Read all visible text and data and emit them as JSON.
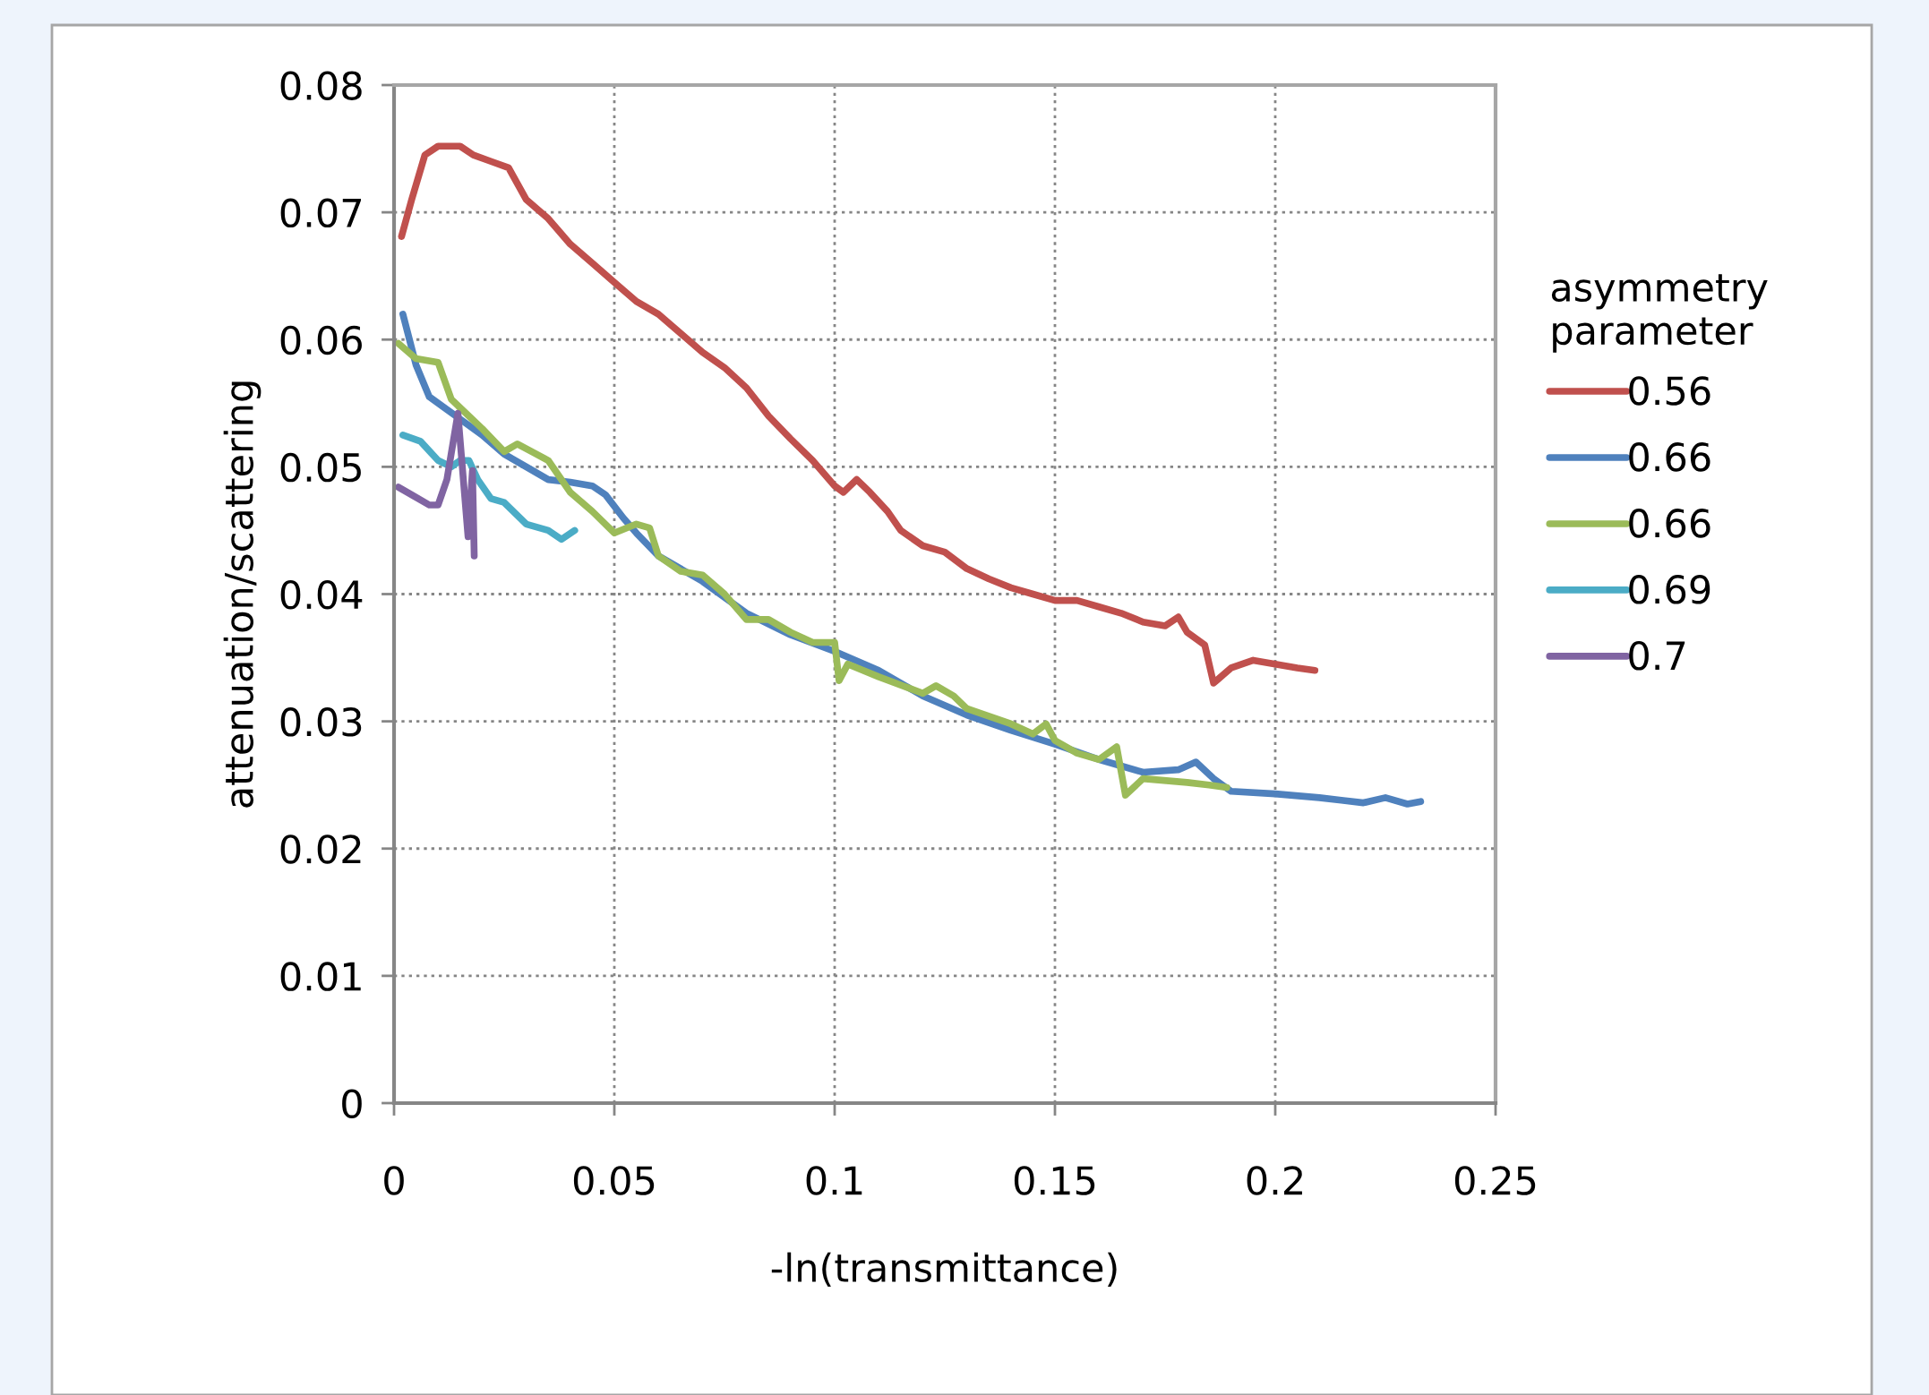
{
  "chart_data": {
    "type": "line",
    "xlabel": "-ln(transmittance)",
    "ylabel": "attenuation/scattering",
    "legend_title": "asymmetry parameter",
    "legend": "right",
    "grid": true,
    "line_style": "solid",
    "marker": "none",
    "xlim": [
      0,
      0.25
    ],
    "xticks": [
      0,
      0.05,
      0.1,
      0.15,
      0.2,
      0.25
    ],
    "ylim": [
      0,
      0.08
    ],
    "yticks": [
      0,
      0.01,
      0.02,
      0.03,
      0.04,
      0.05,
      0.06,
      0.07,
      0.08
    ],
    "series": [
      {
        "name": "0.56",
        "color": "#c0504d",
        "x": [
          0.0017,
          0.004,
          0.007,
          0.01,
          0.015,
          0.018,
          0.022,
          0.026,
          0.03,
          0.035,
          0.04,
          0.045,
          0.05,
          0.055,
          0.06,
          0.065,
          0.07,
          0.075,
          0.08,
          0.085,
          0.09,
          0.095,
          0.1,
          0.102,
          0.105,
          0.108,
          0.112,
          0.115,
          0.12,
          0.125,
          0.13,
          0.135,
          0.14,
          0.145,
          0.15,
          0.155,
          0.16,
          0.165,
          0.17,
          0.175,
          0.178,
          0.18,
          0.184,
          0.186,
          0.19,
          0.195,
          0.2,
          0.205,
          0.209
        ],
        "values": [
          0.0681,
          0.071,
          0.0745,
          0.0752,
          0.0752,
          0.0745,
          0.074,
          0.0735,
          0.071,
          0.0695,
          0.0675,
          0.066,
          0.0645,
          0.063,
          0.062,
          0.0605,
          0.059,
          0.0578,
          0.0562,
          0.054,
          0.0522,
          0.0505,
          0.0485,
          0.048,
          0.049,
          0.048,
          0.0465,
          0.045,
          0.0438,
          0.0433,
          0.042,
          0.0412,
          0.0405,
          0.04,
          0.0395,
          0.0395,
          0.039,
          0.0385,
          0.0378,
          0.0375,
          0.0382,
          0.037,
          0.036,
          0.033,
          0.0342,
          0.0348,
          0.0345,
          0.0342,
          0.034
        ]
      },
      {
        "name": "0.66",
        "color": "#4f81bd",
        "x": [
          0.002,
          0.005,
          0.008,
          0.012,
          0.02,
          0.025,
          0.03,
          0.035,
          0.04,
          0.045,
          0.048,
          0.052,
          0.055,
          0.06,
          0.07,
          0.08,
          0.09,
          0.1,
          0.11,
          0.12,
          0.13,
          0.14,
          0.15,
          0.16,
          0.17,
          0.178,
          0.182,
          0.186,
          0.19,
          0.2,
          0.21,
          0.215,
          0.22,
          0.225,
          0.23,
          0.233
        ],
        "values": [
          0.062,
          0.058,
          0.0555,
          0.0545,
          0.0525,
          0.051,
          0.05,
          0.049,
          0.0488,
          0.0485,
          0.0478,
          0.046,
          0.0448,
          0.043,
          0.041,
          0.0385,
          0.0368,
          0.0355,
          0.034,
          0.032,
          0.0305,
          0.0293,
          0.0282,
          0.027,
          0.026,
          0.0262,
          0.0268,
          0.0255,
          0.0245,
          0.0243,
          0.024,
          0.0238,
          0.0236,
          0.024,
          0.0235,
          0.0237
        ]
      },
      {
        "name": "0.66",
        "color": "#9bbb59",
        "x": [
          0.001,
          0.005,
          0.01,
          0.013,
          0.02,
          0.025,
          0.028,
          0.035,
          0.04,
          0.045,
          0.05,
          0.055,
          0.058,
          0.06,
          0.065,
          0.07,
          0.075,
          0.08,
          0.085,
          0.09,
          0.095,
          0.1,
          0.101,
          0.103,
          0.11,
          0.12,
          0.123,
          0.127,
          0.13,
          0.14,
          0.145,
          0.148,
          0.15,
          0.155,
          0.16,
          0.164,
          0.166,
          0.17,
          0.18,
          0.185,
          0.189
        ],
        "values": [
          0.0597,
          0.0585,
          0.0582,
          0.0553,
          0.053,
          0.0512,
          0.0518,
          0.0505,
          0.048,
          0.0465,
          0.0448,
          0.0455,
          0.0452,
          0.043,
          0.0418,
          0.0415,
          0.04,
          0.038,
          0.038,
          0.037,
          0.0362,
          0.0362,
          0.0332,
          0.0345,
          0.0335,
          0.0322,
          0.0328,
          0.032,
          0.031,
          0.0298,
          0.029,
          0.0298,
          0.0285,
          0.0275,
          0.027,
          0.028,
          0.0242,
          0.0255,
          0.0252,
          0.025,
          0.0248
        ]
      },
      {
        "name": "0.69",
        "color": "#4bacc6",
        "x": [
          0.002,
          0.006,
          0.01,
          0.013,
          0.015,
          0.017,
          0.019,
          0.022,
          0.025,
          0.03,
          0.035,
          0.038,
          0.041
        ],
        "values": [
          0.0525,
          0.052,
          0.0505,
          0.05,
          0.0505,
          0.0505,
          0.049,
          0.0475,
          0.0472,
          0.0455,
          0.045,
          0.0443,
          0.045
        ]
      },
      {
        "name": "0.7",
        "color": "#8064a2",
        "x": [
          0.001,
          0.004,
          0.008,
          0.01,
          0.012,
          0.0145,
          0.0168,
          0.0178,
          0.0182
        ],
        "values": [
          0.0484,
          0.0478,
          0.047,
          0.047,
          0.049,
          0.0542,
          0.0445,
          0.0497,
          0.043
        ]
      }
    ]
  }
}
